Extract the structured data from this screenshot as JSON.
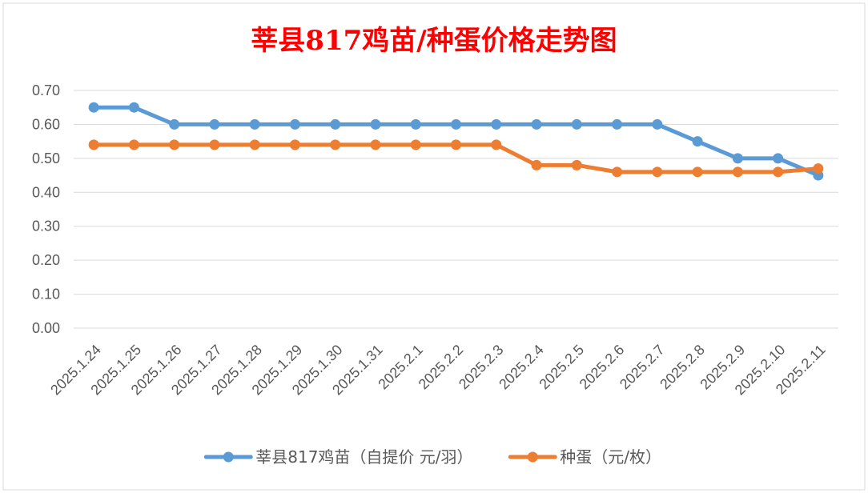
{
  "chart_data": {
    "type": "line",
    "title": "莘县817鸡苗/种蛋价格走势图",
    "title_color": "#ff0000",
    "xlabel": "",
    "ylabel": "",
    "categories": [
      "2025.1.24",
      "2025.1.25",
      "2025.1.26",
      "2025.1.27",
      "2025.1.28",
      "2025.1.29",
      "2025.1.30",
      "2025.1.31",
      "2025.2.1",
      "2025.2.2",
      "2025.2.3",
      "2025.2.4",
      "2025.2.5",
      "2025.2.6",
      "2025.2.7",
      "2025.2.8",
      "2025.2.9",
      "2025.2.10",
      "2025.2.11"
    ],
    "ylim": [
      0,
      0.7
    ],
    "yticks": [
      "0.00",
      "0.10",
      "0.20",
      "0.30",
      "0.40",
      "0.50",
      "0.60",
      "0.70"
    ],
    "grid": true,
    "legend_position": "bottom",
    "series": [
      {
        "name": "莘县817鸡苗（自提价 元/羽）",
        "color": "#5b9bd5",
        "values": [
          0.65,
          0.65,
          0.6,
          0.6,
          0.6,
          0.6,
          0.6,
          0.6,
          0.6,
          0.6,
          0.6,
          0.6,
          0.6,
          0.6,
          0.6,
          0.55,
          0.5,
          0.5,
          0.45
        ]
      },
      {
        "name": "种蛋（元/枚）",
        "color": "#ed7d31",
        "values": [
          0.54,
          0.54,
          0.54,
          0.54,
          0.54,
          0.54,
          0.54,
          0.54,
          0.54,
          0.54,
          0.54,
          0.48,
          0.48,
          0.46,
          0.46,
          0.46,
          0.46,
          0.46,
          0.47
        ]
      }
    ]
  }
}
